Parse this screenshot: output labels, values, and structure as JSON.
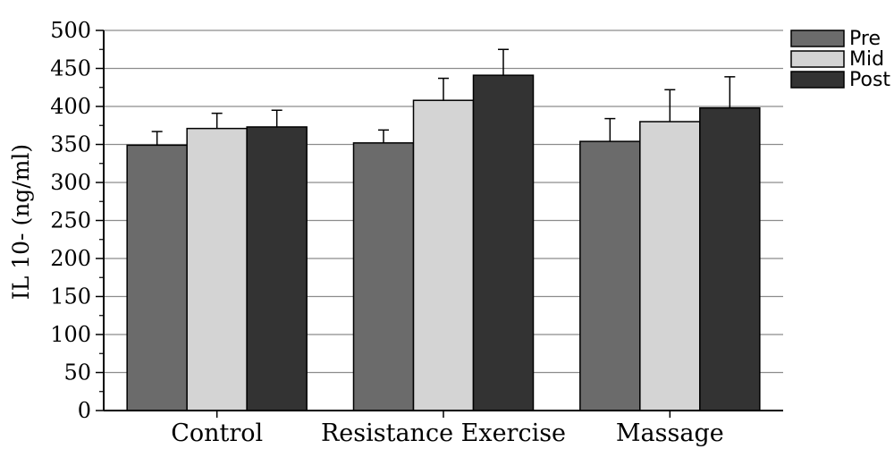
{
  "chart_data": {
    "type": "bar",
    "title": "",
    "xlabel": "",
    "ylabel": "IL 10- (ng/ml)",
    "ylim": [
      0,
      500
    ],
    "yticks": [
      0,
      50,
      100,
      150,
      200,
      250,
      300,
      350,
      400,
      450,
      500
    ],
    "grid": true,
    "legend_position": "top-right",
    "categories": [
      "Control",
      "Resistance Exercise",
      "Massage"
    ],
    "series": [
      {
        "name": "Pre",
        "color": "#6b6b6b",
        "values": [
          349,
          352,
          354
        ],
        "errors": [
          18,
          17,
          30
        ]
      },
      {
        "name": "Mid",
        "color": "#d4d4d4",
        "values": [
          371,
          408,
          380
        ],
        "errors": [
          20,
          29,
          42
        ]
      },
      {
        "name": "Post",
        "color": "#333333",
        "values": [
          373,
          441,
          398
        ],
        "errors": [
          22,
          34,
          41
        ]
      }
    ]
  }
}
